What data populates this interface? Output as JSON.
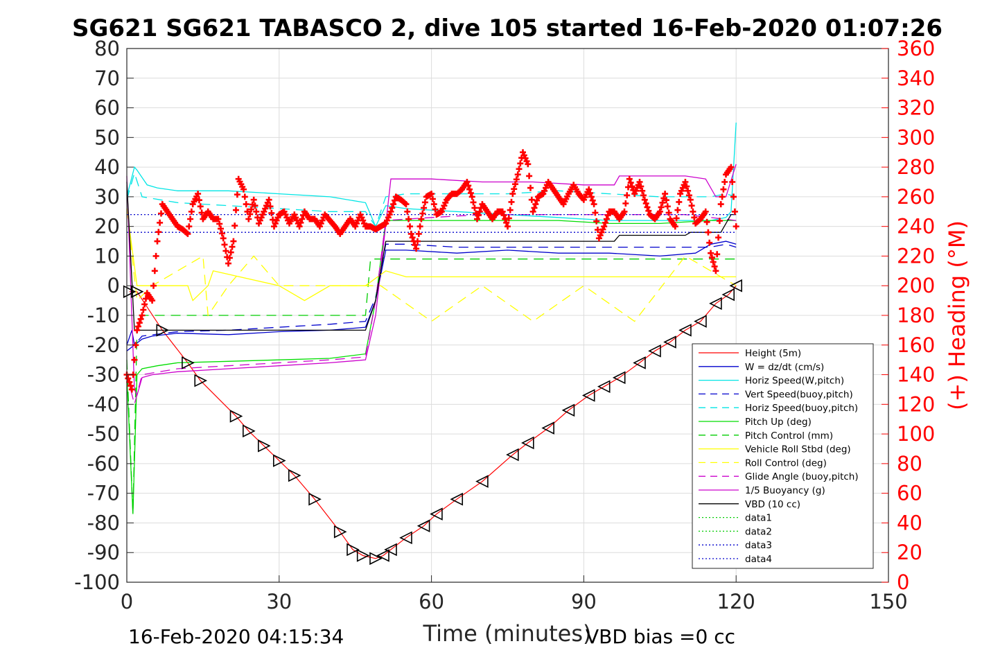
{
  "chart_data": {
    "type": "line",
    "title": "SG621 SG621 TABASCO 2, dive 105 started 16-Feb-2020 01:07:26",
    "xlabel": "Time (minutes)",
    "ylabel_right": "(+) Heading (°M)",
    "xlim": [
      0,
      150
    ],
    "ylim_left": [
      -100,
      80
    ],
    "ylim_right": [
      0,
      360
    ],
    "x_ticks": [
      "0",
      "30",
      "60",
      "90",
      "120",
      "150"
    ],
    "y_ticks_left": [
      "80",
      "70",
      "60",
      "50",
      "40",
      "30",
      "20",
      "10",
      "0",
      "-10",
      "-20",
      "-30",
      "-40",
      "-50",
      "-60",
      "-70",
      "-80",
      "-90",
      "-100"
    ],
    "y_ticks_right": [
      "360",
      "340",
      "320",
      "300",
      "280",
      "260",
      "240",
      "220",
      "200",
      "180",
      "160",
      "140",
      "120",
      "100",
      "80",
      "60",
      "40",
      "20",
      "0"
    ],
    "grid": true,
    "legend_position": "lower-right",
    "footer_left": "16-Feb-2020 04:15:34",
    "footer_right": "VBD bias =0 cc",
    "series": [
      {
        "name": "Height (5m)",
        "color": "#ff0000",
        "style": "solid",
        "marker": "triangle",
        "x": [
          0.5,
          2,
          7,
          12,
          14.5,
          21.5,
          24,
          27,
          30,
          33,
          37,
          42,
          44.5,
          46.5,
          49,
          50.5,
          52,
          55,
          58.5,
          61,
          65,
          70,
          76,
          79,
          83,
          87,
          91,
          94,
          97,
          101,
          104,
          107,
          110,
          113,
          116,
          118.5,
          120
        ],
        "y": [
          -2,
          -2,
          -15,
          -26,
          -32,
          -44,
          -49,
          -54,
          -59,
          -64,
          -72,
          -83,
          -89,
          -91,
          -92,
          -91,
          -89,
          -85,
          -81,
          -77,
          -72,
          -66,
          -57,
          -53,
          -48,
          -42,
          -37,
          -34,
          -31,
          -26,
          -22,
          -19,
          -15,
          -12,
          -6,
          -3,
          0
        ]
      },
      {
        "name": "W = dz/dt (cm/s)",
        "color": "#0000cc",
        "style": "solid",
        "x": [
          0,
          1,
          1.5,
          3,
          5,
          10,
          20,
          30,
          40,
          47,
          49,
          51,
          55,
          65,
          75,
          85,
          95,
          105,
          112,
          115,
          118,
          120
        ],
        "y": [
          -20,
          -15,
          -20,
          -18,
          -17,
          -16,
          -16.5,
          -15.5,
          -15,
          -14,
          -5,
          12,
          12,
          11,
          12,
          11,
          11,
          10,
          11,
          14,
          15,
          14
        ]
      },
      {
        "name": "Horiz Speed(W,pitch)",
        "color": "#00e5e5",
        "style": "solid",
        "x": [
          0,
          1.5,
          2,
          4,
          6,
          10,
          20,
          30,
          40,
          47,
          49,
          51,
          55,
          65,
          75,
          85,
          95,
          105,
          115,
          118,
          119,
          120
        ],
        "y": [
          30,
          40,
          39,
          34,
          33,
          32,
          32,
          31,
          30,
          28,
          20,
          27,
          26,
          25,
          24,
          23,
          22,
          22,
          22,
          23,
          25,
          55
        ]
      },
      {
        "name": "Vert Speed(buoy,pitch)",
        "color": "#0000cc",
        "style": "dashed",
        "x": [
          0,
          1.5,
          3,
          10,
          20,
          30,
          40,
          47,
          49,
          51,
          55,
          65,
          75,
          85,
          95,
          105,
          115,
          118,
          120
        ],
        "y": [
          -22,
          -20,
          -17,
          -15.5,
          -15,
          -14,
          -13,
          -12,
          -4,
          14,
          14,
          13,
          13,
          13,
          13,
          13,
          13,
          14,
          13
        ]
      },
      {
        "name": "Horiz Speed(buoy,pitch)",
        "color": "#00e5e5",
        "style": "dashed",
        "x": [
          0,
          1.5,
          3,
          10,
          20,
          30,
          40,
          47,
          49,
          51,
          55,
          65,
          75,
          85,
          95,
          105,
          115,
          118,
          120
        ],
        "y": [
          29,
          38,
          30,
          28,
          27,
          26,
          25,
          25,
          20,
          30,
          31,
          31,
          31,
          32,
          31,
          30,
          30,
          31,
          30
        ]
      },
      {
        "name": "Pitch Up (deg)",
        "color": "#00dd00",
        "style": "solid",
        "x": [
          0,
          1.2,
          2,
          3,
          6,
          10,
          20,
          30,
          40,
          47,
          49,
          51,
          55,
          65,
          75,
          85,
          95,
          105,
          115,
          120
        ],
        "y": [
          -30,
          -77,
          -30,
          -28,
          -27,
          -26,
          -25.5,
          -25,
          -24.5,
          -23,
          -5,
          22,
          22,
          22,
          22,
          22,
          21,
          21,
          22,
          22
        ]
      },
      {
        "name": "Pitch Control (mm)",
        "color": "#00cc00",
        "style": "dashed",
        "x": [
          0,
          1.2,
          2,
          3,
          47,
          48,
          51,
          120
        ],
        "y": [
          -25,
          -77,
          -15,
          -10,
          -10,
          9,
          9,
          9
        ]
      },
      {
        "name": "Vehicle Roll Stbd (deg)",
        "color": "#ffff00",
        "style": "solid",
        "x": [
          0,
          2,
          5,
          12,
          13,
          16,
          17,
          30,
          35,
          40,
          47,
          51,
          55,
          60,
          70,
          80,
          90,
          100,
          110,
          115,
          120
        ],
        "y": [
          26,
          0,
          0,
          0,
          -5,
          0,
          5,
          0,
          -5,
          0,
          0,
          5,
          3,
          3,
          3,
          3,
          3,
          3,
          3,
          3,
          3
        ]
      },
      {
        "name": "Roll Control (deg)",
        "color": "#ffff00",
        "style": "dashed",
        "x": [
          0,
          2,
          5,
          15,
          16,
          20,
          25,
          30,
          40,
          47,
          50,
          60,
          70,
          80,
          90,
          100,
          110,
          120
        ],
        "y": [
          26,
          -5,
          0,
          10,
          -10,
          0,
          10,
          0,
          0,
          0,
          0,
          -12,
          0,
          -12,
          0,
          -12,
          10,
          0
        ]
      },
      {
        "name": "Glide Angle (buoy,pitch)",
        "color": "#cc00cc",
        "style": "dashed",
        "x": [
          0,
          1.5,
          3,
          10,
          20,
          30,
          40,
          47,
          49,
          51,
          60,
          70,
          80,
          90,
          100,
          110,
          115,
          120
        ],
        "y": [
          -30,
          -40,
          -30,
          -28,
          -27,
          -26,
          -25,
          -24,
          -5,
          22,
          23,
          24,
          24,
          24,
          24,
          24,
          23,
          22
        ]
      },
      {
        "name": "1/5 Buoyancy (g)",
        "color": "#cc00cc",
        "style": "solid",
        "x": [
          0,
          1.5,
          2,
          3,
          5,
          10,
          20,
          30,
          40,
          47,
          49,
          52,
          60,
          70,
          80,
          90,
          96,
          97,
          100,
          110,
          114,
          116,
          118,
          120
        ],
        "y": [
          37,
          -35,
          -37,
          -31,
          -30,
          -29,
          -28,
          -27,
          -26,
          -25,
          -10,
          36,
          36,
          35,
          35,
          34,
          34,
          37,
          37,
          37,
          36,
          30,
          30,
          41
        ]
      },
      {
        "name": "VBD (10 cc)",
        "color": "#000000",
        "style": "solid",
        "x": [
          0,
          1.5,
          3,
          10,
          20,
          30,
          40,
          47,
          49,
          51,
          60,
          70,
          80,
          90,
          96,
          97,
          110,
          111,
          117,
          119,
          120
        ],
        "y": [
          35,
          -15,
          -15,
          -15,
          -15,
          -15,
          -15,
          -15,
          -5,
          15,
          15,
          15,
          15,
          15,
          15,
          17,
          17,
          18,
          18,
          24,
          24
        ]
      },
      {
        "name": "data1",
        "color": "#00cc00",
        "style": "dotted",
        "x": [],
        "y": []
      },
      {
        "name": "data2",
        "color": "#00cc00",
        "style": "dotted",
        "x": [],
        "y": []
      },
      {
        "name": "data3",
        "color": "#0000cc",
        "style": "dotted",
        "x": [
          0,
          120
        ],
        "y": [
          24,
          24
        ]
      },
      {
        "name": "data4",
        "color": "#0000cc",
        "style": "dotted",
        "x": [
          0,
          120
        ],
        "y": [
          18,
          18
        ]
      },
      {
        "name": "(+) Heading (°M)",
        "axis": "right",
        "color": "#ff0000",
        "style": "markers",
        "marker": "plus",
        "x": [
          0,
          1,
          2,
          3,
          4,
          5,
          6,
          7,
          8,
          9,
          10,
          11,
          12,
          13,
          14,
          15,
          16,
          17,
          18,
          19,
          20,
          21,
          22,
          23,
          24,
          25,
          26,
          27,
          28,
          29,
          30,
          31,
          32,
          33,
          34,
          35,
          36,
          37,
          38,
          39,
          40,
          41,
          42,
          43,
          44,
          45,
          46,
          47,
          48,
          49,
          50,
          51,
          52,
          53,
          54,
          55,
          56,
          57,
          58,
          59,
          60,
          61,
          62,
          63,
          64,
          65,
          66,
          67,
          68,
          69,
          70,
          71,
          72,
          73,
          74,
          75,
          76,
          77,
          78,
          79,
          80,
          81,
          82,
          83,
          84,
          85,
          86,
          87,
          88,
          89,
          90,
          91,
          92,
          93,
          94,
          95,
          96,
          97,
          98,
          99,
          100,
          101,
          102,
          103,
          104,
          105,
          106,
          107,
          108,
          109,
          110,
          111,
          112,
          113,
          114,
          115,
          116,
          117,
          118,
          119,
          120
        ],
        "y": [
          140,
          130,
          170,
          180,
          195,
          190,
          230,
          255,
          250,
          245,
          240,
          238,
          235,
          255,
          262,
          245,
          250,
          245,
          245,
          232,
          215,
          230,
          272,
          265,
          245,
          258,
          242,
          250,
          258,
          240,
          248,
          250,
          242,
          248,
          240,
          250,
          245,
          245,
          240,
          248,
          244,
          240,
          235,
          240,
          245,
          240,
          248,
          240,
          240,
          238,
          240,
          242,
          250,
          260,
          258,
          255,
          235,
          225,
          245,
          260,
          262,
          248,
          250,
          258,
          262,
          262,
          265,
          270,
          260,
          245,
          255,
          250,
          245,
          250,
          250,
          240,
          262,
          275,
          290,
          282,
          250,
          260,
          262,
          270,
          265,
          260,
          255,
          262,
          268,
          262,
          258,
          265,
          255,
          232,
          240,
          250,
          250,
          245,
          250,
          272,
          262,
          270,
          258,
          248,
          245,
          250,
          262,
          245,
          240,
          262,
          270,
          258,
          242,
          245,
          250,
          222,
          210,
          255,
          275,
          280,
          240
        ]
      }
    ]
  },
  "legend": {
    "items": [
      {
        "label": "Height (5m)",
        "color": "#ff0000",
        "dash": ""
      },
      {
        "label": "W = dz/dt (cm/s)",
        "color": "#0000cc",
        "dash": ""
      },
      {
        "label": "Horiz Speed(W,pitch)",
        "color": "#00e5e5",
        "dash": ""
      },
      {
        "label": "Vert Speed(buoy,pitch)",
        "color": "#0000cc",
        "dash": "10,7"
      },
      {
        "label": "Horiz Speed(buoy,pitch)",
        "color": "#00e5e5",
        "dash": "10,7"
      },
      {
        "label": "Pitch Up (deg)",
        "color": "#00dd00",
        "dash": ""
      },
      {
        "label": "Pitch Control (mm)",
        "color": "#00cc00",
        "dash": "10,7"
      },
      {
        "label": "Vehicle Roll Stbd (deg)",
        "color": "#ffff00",
        "dash": ""
      },
      {
        "label": "Roll Control (deg)",
        "color": "#ffff00",
        "dash": "10,7"
      },
      {
        "label": "Glide Angle (buoy,pitch)",
        "color": "#cc00cc",
        "dash": "10,7"
      },
      {
        "label": "1/5 Buoyancy (g)",
        "color": "#cc00cc",
        "dash": ""
      },
      {
        "label": "VBD (10 cc)",
        "color": "#000000",
        "dash": ""
      },
      {
        "label": "data1",
        "color": "#00cc00",
        "dash": "2,3"
      },
      {
        "label": "data2",
        "color": "#00cc00",
        "dash": "2,3"
      },
      {
        "label": "data3",
        "color": "#0000cc",
        "dash": "2,3"
      },
      {
        "label": "data4",
        "color": "#0000cc",
        "dash": "2,3"
      }
    ]
  }
}
